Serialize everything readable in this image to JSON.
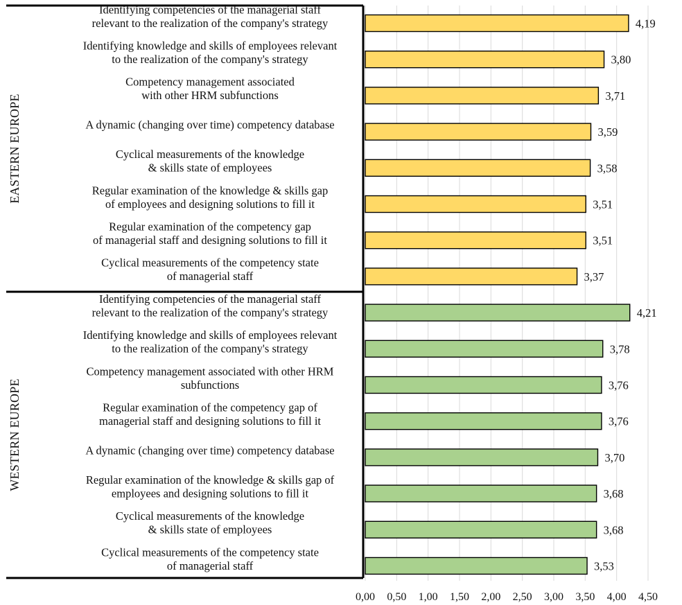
{
  "chart_data": {
    "type": "bar",
    "orientation": "horizontal",
    "xlim": [
      0,
      4.5
    ],
    "x_ticks": [
      "0,00",
      "0,50",
      "1,00",
      "1,50",
      "2,00",
      "2,50",
      "3,00",
      "3,50",
      "4,00",
      "4,50"
    ],
    "grid": "vertical",
    "groups": [
      {
        "name": "EASTERN EUROPE",
        "color": "#FFD966",
        "categories": [
          [
            "Identifying competencies of the managerial staff",
            "relevant to the realization of the company's strategy"
          ],
          [
            "Identifying knowledge and skills of  employees relevant",
            "to the realization of the company's strategy"
          ],
          [
            "Competency management associated",
            "with other HRM subfunctions"
          ],
          [
            "A dynamic (changing over time) competency database"
          ],
          [
            "Cyclical measurements of the knowledge",
            "& skills state of employees"
          ],
          [
            "Regular examination of the knowledge & skills gap",
            "of employees and designing solutions to fill it"
          ],
          [
            "Regular examination of the competency gap",
            "of managerial staff and designing solutions to fill it"
          ],
          [
            "Cyclical measurements of the competency state",
            "of managerial staff"
          ]
        ],
        "values": [
          4.19,
          3.8,
          3.71,
          3.59,
          3.58,
          3.51,
          3.51,
          3.37
        ],
        "value_labels": [
          "4,19",
          "3,80",
          "3,71",
          "3,59",
          "3,58",
          "3,51",
          "3,51",
          "3,37"
        ]
      },
      {
        "name": "WESTERN EUROPE",
        "color": "#A9D18E",
        "categories": [
          [
            "Identifying competencies of the managerial staff",
            "relevant to the realization of the company's strategy"
          ],
          [
            "Identifying knowledge and skills of  employees relevant",
            "to the realization of the company's strategy"
          ],
          [
            "Competency management associated with other HRM",
            "subfunctions"
          ],
          [
            "Regular examination of the competency gap of",
            "managerial staff and designing solutions to fill it"
          ],
          [
            "A dynamic (changing over time) competency database"
          ],
          [
            "Regular examination of the knowledge & skills gap of",
            "employees and designing solutions to fill it"
          ],
          [
            "Cyclical measurements of the knowledge",
            "& skills state of employees"
          ],
          [
            "Cyclical measurements of the competency state",
            "of managerial staff"
          ]
        ],
        "values": [
          4.21,
          3.78,
          3.76,
          3.76,
          3.7,
          3.68,
          3.68,
          3.53
        ],
        "value_labels": [
          "4,21",
          "3,78",
          "3,76",
          "3,76",
          "3,70",
          "3,68",
          "3,68",
          "3,53"
        ]
      }
    ]
  }
}
